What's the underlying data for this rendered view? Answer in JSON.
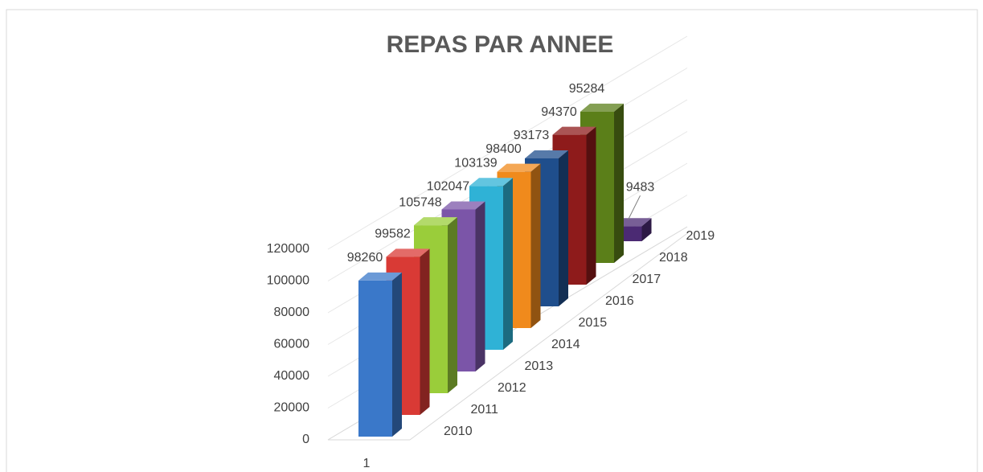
{
  "chart_data": {
    "type": "bar3d",
    "title": "REPAS PAR ANNEE",
    "categories": [
      "1"
    ],
    "series": [
      {
        "name": "2010",
        "color": "#3a78c9",
        "values": [
          98260
        ]
      },
      {
        "name": "2011",
        "color": "#d93a35",
        "values": [
          99582
        ]
      },
      {
        "name": "2012",
        "color": "#9acd3a",
        "values": [
          105748
        ]
      },
      {
        "name": "2013",
        "color": "#7b55a8",
        "values": [
          102047
        ]
      },
      {
        "name": "2014",
        "color": "#2fb2d6",
        "values": [
          103139
        ]
      },
      {
        "name": "2015",
        "color": "#f08a1c",
        "values": [
          98400
        ]
      },
      {
        "name": "2016",
        "color": "#1f4e8c",
        "values": [
          93173
        ]
      },
      {
        "name": "2017",
        "color": "#8e1b1b",
        "values": [
          94370
        ]
      },
      {
        "name": "2018",
        "color": "#5b7f19",
        "values": [
          95284
        ]
      },
      {
        "name": "2019",
        "color": "#4b2a73",
        "values": [
          9483
        ]
      }
    ],
    "ylim": [
      0,
      120000
    ],
    "yticks": [
      0,
      20000,
      40000,
      60000,
      80000,
      100000,
      120000
    ],
    "grid": true
  }
}
